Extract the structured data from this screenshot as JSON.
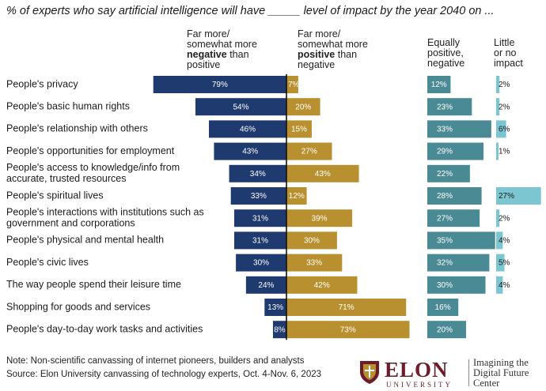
{
  "title": "% of experts who say artificial intelligence will have _____ level of impact by the year 2040 on ...",
  "column_headers": {
    "negative": {
      "line1": "Far more/",
      "line2": "somewhat more",
      "bold": "negative",
      "after": "than",
      "line4": "positive"
    },
    "positive": {
      "line1": "Far more/",
      "line2": "somewhat more",
      "bold": "positive",
      "after": "than",
      "line4": "negative"
    },
    "equal": {
      "line1": "Equally",
      "line2": "positive,",
      "line3": "negative"
    },
    "little": {
      "line1": "Little",
      "line2": "or no",
      "line3": "impact"
    }
  },
  "colors": {
    "negative": "#1f3a6e",
    "positive": "#b8902f",
    "equal": "#4a8a95",
    "little": "#7bc6d1",
    "axis": "#111111"
  },
  "chart_data": {
    "type": "bar",
    "categories": [
      "People's privacy",
      "People's basic human rights",
      "People's relationship with others",
      "People's opportunities for employment",
      "People's access to knowledge/info from accurate, trusted resources",
      "People's spiritual lives",
      "People's interactions with institutions such as government and corporations",
      "People's physical and mental health",
      "People's civic lives",
      "The way people spend their leisure time",
      "Shopping for goods and services",
      "People's day-to-day work tasks and activities"
    ],
    "category_lines": [
      [
        "People's privacy"
      ],
      [
        "People's basic human rights"
      ],
      [
        "People's relationship with others"
      ],
      [
        "People's opportunities for employment"
      ],
      [
        "People's access to knowledge/info from",
        "accurate, trusted resources"
      ],
      [
        "People's spiritual lives"
      ],
      [
        "People's interactions with institutions such as",
        "government and corporations"
      ],
      [
        "People's physical and mental health"
      ],
      [
        "People's civic lives"
      ],
      [
        "The way people spend their leisure time"
      ],
      [
        "Shopping for goods and services"
      ],
      [
        "People's day-to-day work tasks and activities"
      ]
    ],
    "unit": "%",
    "series": [
      {
        "name": "Far more/somewhat more negative than positive",
        "key": "negative",
        "values": [
          79,
          54,
          46,
          43,
          34,
          33,
          31,
          31,
          30,
          24,
          13,
          8
        ]
      },
      {
        "name": "Far more/somewhat more positive than negative",
        "key": "positive",
        "values": [
          7,
          20,
          15,
          27,
          43,
          12,
          39,
          30,
          33,
          42,
          71,
          73
        ]
      },
      {
        "name": "Equally positive, negative",
        "key": "equal",
        "values": [
          12,
          23,
          33,
          29,
          22,
          28,
          27,
          35,
          32,
          30,
          16,
          20
        ]
      },
      {
        "name": "Little or no impact",
        "key": "little",
        "values": [
          2,
          2,
          6,
          1,
          null,
          27,
          2,
          4,
          5,
          4,
          null,
          null
        ]
      }
    ]
  },
  "notes": {
    "note": "Note: Non-scientific canvassing of internet pioneers, builders and analysts",
    "source": "Source: Elon University canvassing of technology experts, Oct. 4-Nov. 6, 2023"
  },
  "logo": {
    "name": "ELON",
    "sub": "UNIVERSITY",
    "tagline1": "Imagining the",
    "tagline2": "Digital Future",
    "tagline3": "Center"
  }
}
